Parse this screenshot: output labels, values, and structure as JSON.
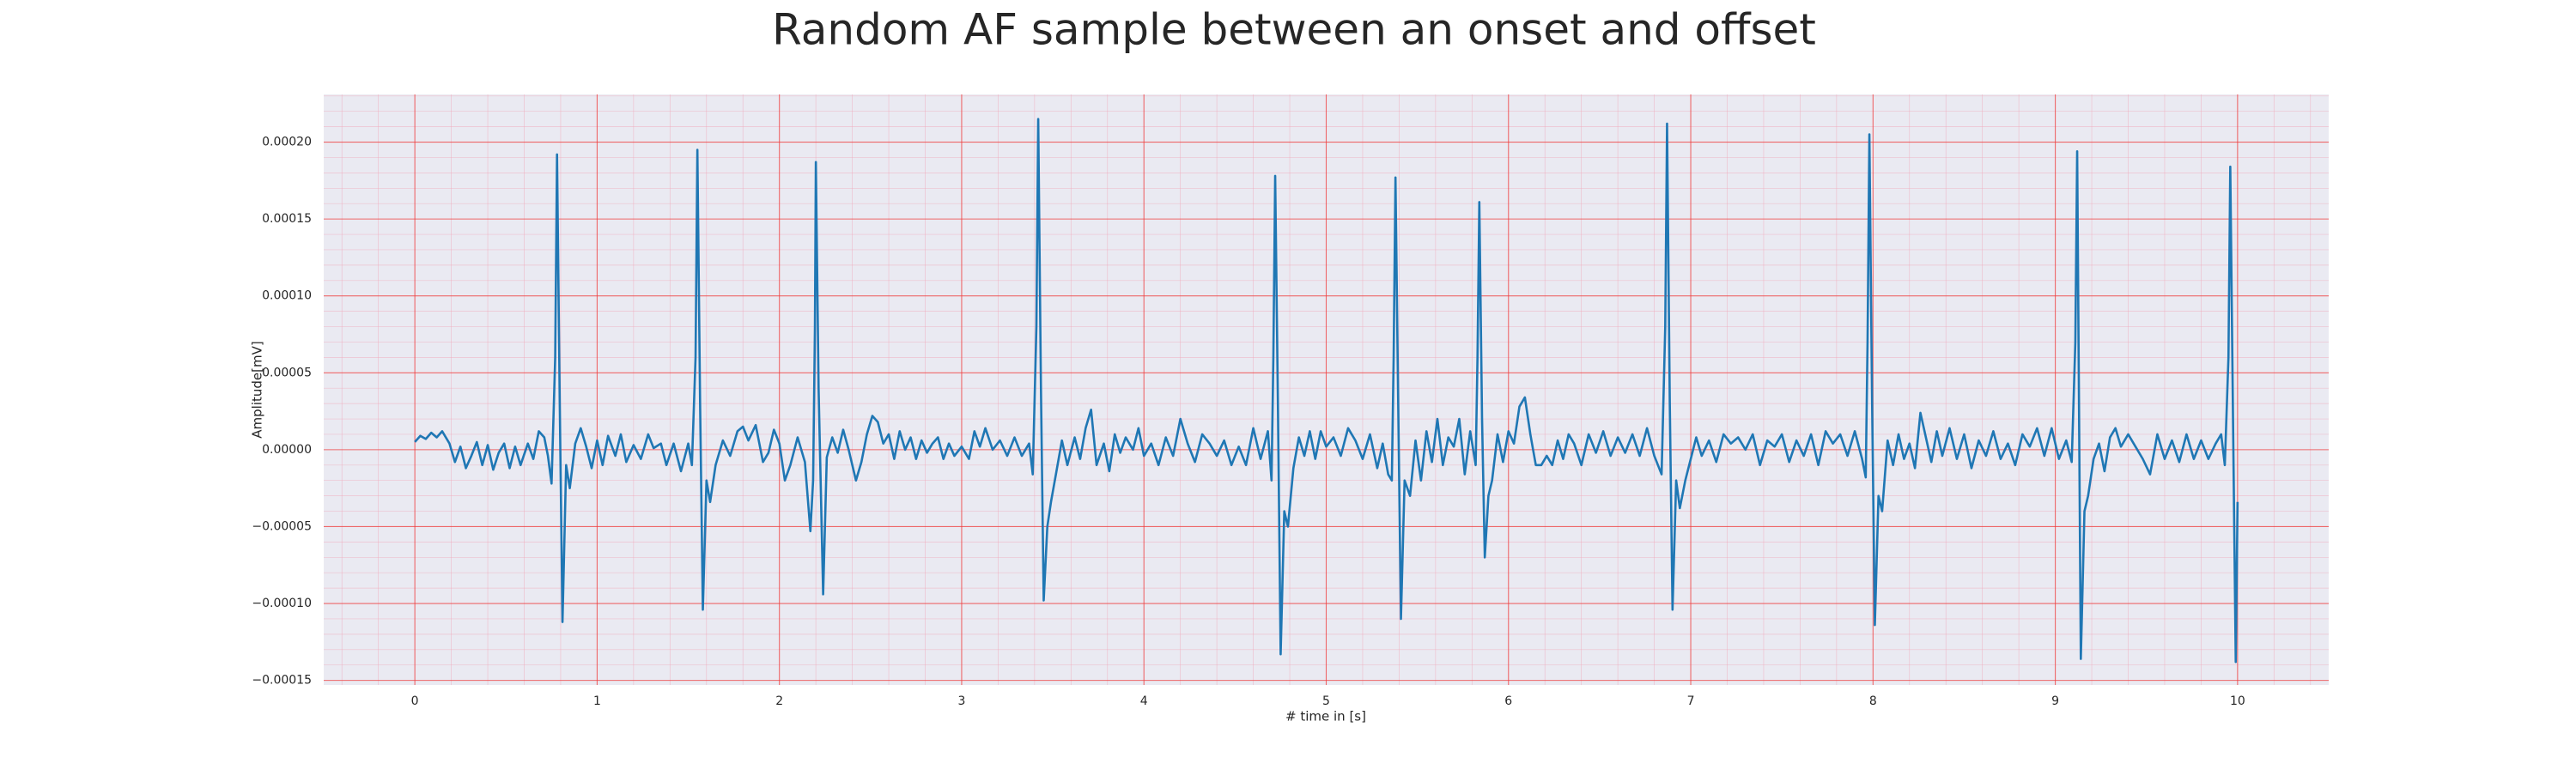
{
  "chart_data": {
    "type": "line",
    "title": "Random AF sample between an onset and offset",
    "x_label": "# time in [s]",
    "y_label": "Amplitude[mV]",
    "color": "#1f77b4",
    "background": "#eaeaf2",
    "grid": true,
    "minor_grid": true,
    "xlim": [
      -0.5,
      10.5
    ],
    "ylim": [
      -0.000153,
      0.000231
    ],
    "xticks": [
      0,
      1,
      2,
      3,
      4,
      5,
      6,
      7,
      8,
      9,
      10
    ],
    "yticks": [
      {
        "value": -0.00015,
        "label": "−0.00015"
      },
      {
        "value": -0.0001,
        "label": "−0.00010"
      },
      {
        "value": -5e-05,
        "label": "−0.00005"
      },
      {
        "value": 0,
        "label": "0.00000"
      },
      {
        "value": 5e-05,
        "label": "0.00005"
      },
      {
        "value": 0.0001,
        "label": "0.00010"
      },
      {
        "value": 0.00015,
        "label": "0.00015"
      },
      {
        "value": 0.0002,
        "label": "0.00020"
      }
    ],
    "x": [
      0,
      0.03,
      0.06,
      0.09,
      0.12,
      0.15,
      0.19,
      0.22,
      0.25,
      0.28,
      0.31,
      0.34,
      0.37,
      0.4,
      0.43,
      0.46,
      0.49,
      0.52,
      0.55,
      0.58,
      0.62,
      0.65,
      0.68,
      0.71,
      0.73,
      0.75,
      0.77,
      0.78,
      0.795,
      0.81,
      0.83,
      0.85,
      0.88,
      0.91,
      0.94,
      0.97,
      1.0,
      1.03,
      1.06,
      1.1,
      1.13,
      1.16,
      1.2,
      1.24,
      1.28,
      1.31,
      1.35,
      1.38,
      1.42,
      1.46,
      1.5,
      1.52,
      1.54,
      1.55,
      1.565,
      1.58,
      1.6,
      1.62,
      1.65,
      1.69,
      1.73,
      1.77,
      1.8,
      1.83,
      1.87,
      1.91,
      1.94,
      1.97,
      2.0,
      2.03,
      2.06,
      2.1,
      2.14,
      2.17,
      2.185,
      2.195,
      2.2,
      2.215,
      2.24,
      2.26,
      2.29,
      2.32,
      2.35,
      2.38,
      2.42,
      2.45,
      2.48,
      2.51,
      2.54,
      2.57,
      2.6,
      2.63,
      2.66,
      2.69,
      2.72,
      2.75,
      2.78,
      2.81,
      2.84,
      2.87,
      2.9,
      2.93,
      2.96,
      3.0,
      3.04,
      3.07,
      3.1,
      3.13,
      3.17,
      3.21,
      3.25,
      3.29,
      3.33,
      3.37,
      3.39,
      3.41,
      3.42,
      3.435,
      3.45,
      3.47,
      3.49,
      3.52,
      3.55,
      3.58,
      3.62,
      3.65,
      3.68,
      3.71,
      3.74,
      3.78,
      3.81,
      3.84,
      3.87,
      3.9,
      3.94,
      3.97,
      4.0,
      4.04,
      4.08,
      4.12,
      4.16,
      4.2,
      4.24,
      4.28,
      4.32,
      4.36,
      4.4,
      4.44,
      4.48,
      4.52,
      4.56,
      4.6,
      4.64,
      4.68,
      4.7,
      4.71,
      4.72,
      4.735,
      4.75,
      4.77,
      4.79,
      4.82,
      4.85,
      4.88,
      4.91,
      4.94,
      4.97,
      5.0,
      5.04,
      5.08,
      5.12,
      5.16,
      5.2,
      5.24,
      5.28,
      5.31,
      5.34,
      5.36,
      5.37,
      5.38,
      5.395,
      5.41,
      5.43,
      5.46,
      5.49,
      5.52,
      5.55,
      5.58,
      5.61,
      5.64,
      5.67,
      5.7,
      5.73,
      5.76,
      5.79,
      5.82,
      5.83,
      5.84,
      5.855,
      5.87,
      5.89,
      5.91,
      5.94,
      5.97,
      6.0,
      6.03,
      6.06,
      6.09,
      6.12,
      6.15,
      6.18,
      6.21,
      6.24,
      6.27,
      6.3,
      6.33,
      6.36,
      6.4,
      6.44,
      6.48,
      6.52,
      6.56,
      6.6,
      6.64,
      6.68,
      6.72,
      6.76,
      6.8,
      6.84,
      6.86,
      6.87,
      6.885,
      6.9,
      6.92,
      6.94,
      6.97,
      7.0,
      7.03,
      7.06,
      7.1,
      7.14,
      7.18,
      7.22,
      7.26,
      7.3,
      7.34,
      7.38,
      7.42,
      7.46,
      7.5,
      7.54,
      7.58,
      7.62,
      7.66,
      7.7,
      7.74,
      7.78,
      7.82,
      7.86,
      7.9,
      7.94,
      7.96,
      7.97,
      7.98,
      7.995,
      8.01,
      8.03,
      8.05,
      8.08,
      8.11,
      8.14,
      8.17,
      8.2,
      8.23,
      8.26,
      8.29,
      8.32,
      8.35,
      8.38,
      8.42,
      8.46,
      8.5,
      8.54,
      8.58,
      8.62,
      8.66,
      8.7,
      8.74,
      8.78,
      8.82,
      8.86,
      8.9,
      8.94,
      8.98,
      9.02,
      9.06,
      9.09,
      9.11,
      9.12,
      9.13,
      9.14,
      9.16,
      9.18,
      9.21,
      9.24,
      9.27,
      9.3,
      9.33,
      9.36,
      9.4,
      9.44,
      9.48,
      9.52,
      9.56,
      9.6,
      9.64,
      9.68,
      9.72,
      9.76,
      9.8,
      9.84,
      9.88,
      9.91,
      9.93,
      9.95,
      9.96,
      9.975,
      9.99,
      10.0
    ],
    "values": [
      5e-06,
      9e-06,
      7e-06,
      1.1e-05,
      8e-06,
      1.2e-05,
      4e-06,
      -8e-06,
      2e-06,
      -1.2e-05,
      -4e-06,
      5e-06,
      -1e-05,
      3e-06,
      -1.3e-05,
      -2e-06,
      4e-06,
      -1.2e-05,
      2e-06,
      -1e-05,
      4e-06,
      -6e-06,
      1.2e-05,
      8e-06,
      -4e-06,
      -2.2e-05,
      6e-05,
      0.000192,
      3e-05,
      -0.000112,
      -1e-05,
      -2.5e-05,
      4e-06,
      1.4e-05,
      2e-06,
      -1.2e-05,
      6e-06,
      -1e-05,
      9e-06,
      -4e-06,
      1e-05,
      -8e-06,
      3e-06,
      -6e-06,
      1e-05,
      1e-06,
      4e-06,
      -1e-05,
      4e-06,
      -1.4e-05,
      4e-06,
      -1e-05,
      6e-05,
      0.000195,
      3e-05,
      -0.000104,
      -2e-05,
      -3.4e-05,
      -1e-05,
      6e-06,
      -4e-06,
      1.2e-05,
      1.5e-05,
      6e-06,
      1.6e-05,
      -8e-06,
      -2e-06,
      1.3e-05,
      4e-06,
      -2e-05,
      -1e-05,
      8e-06,
      -8e-06,
      -5.3e-05,
      -2e-05,
      8e-05,
      0.000187,
      4e-05,
      -9.4e-05,
      -5e-06,
      8e-06,
      -2e-06,
      1.3e-05,
      0,
      -2e-05,
      -8e-06,
      1e-05,
      2.2e-05,
      1.8e-05,
      4e-06,
      1e-05,
      -6e-06,
      1.2e-05,
      0,
      8e-06,
      -6e-06,
      6e-06,
      -2e-06,
      4e-06,
      8e-06,
      -6e-06,
      4e-06,
      -4e-06,
      2e-06,
      -6e-06,
      1.2e-05,
      2e-06,
      1.4e-05,
      0,
      6e-06,
      -4e-06,
      8e-06,
      -4e-06,
      4e-06,
      -1.6e-05,
      8e-05,
      0.000215,
      4e-05,
      -9.8e-05,
      -5e-05,
      -3.4e-05,
      -1.4e-05,
      6e-06,
      -1e-05,
      8e-06,
      -6e-06,
      1.4e-05,
      2.6e-05,
      -1e-05,
      4e-06,
      -1.4e-05,
      1e-05,
      -2e-06,
      8e-06,
      0,
      1.4e-05,
      -4e-06,
      4e-06,
      -1e-05,
      8e-06,
      -4e-06,
      2e-05,
      4e-06,
      -8e-06,
      1e-05,
      4e-06,
      -4e-06,
      6e-06,
      -1e-05,
      2e-06,
      -1e-05,
      1.4e-05,
      -6e-06,
      1.2e-05,
      -2e-05,
      6e-05,
      0.000178,
      3e-05,
      -0.000133,
      -4e-05,
      -5e-05,
      -1.2e-05,
      8e-06,
      -4e-06,
      1.2e-05,
      -6e-06,
      1.2e-05,
      2e-06,
      8e-06,
      -4e-06,
      1.4e-05,
      6e-06,
      -6e-06,
      1e-05,
      -1.2e-05,
      4e-06,
      -1.6e-05,
      -2e-05,
      6e-05,
      0.000177,
      3e-05,
      -0.00011,
      -2e-05,
      -3e-05,
      6e-06,
      -2e-05,
      1.2e-05,
      -8e-06,
      2e-05,
      -1e-05,
      8e-06,
      2e-06,
      2e-05,
      -1.6e-05,
      1.2e-05,
      -1e-05,
      6e-05,
      0.000161,
      2e-05,
      -7e-05,
      -3e-05,
      -2e-05,
      1e-05,
      -8e-06,
      1.2e-05,
      4e-06,
      2.8e-05,
      3.4e-05,
      1e-05,
      -1e-05,
      -1e-05,
      -4e-06,
      -1e-05,
      6e-06,
      -6e-06,
      1e-05,
      4e-06,
      -1e-05,
      1e-05,
      -2e-06,
      1.2e-05,
      -4e-06,
      8e-06,
      -2e-06,
      1e-05,
      -4e-06,
      1.4e-05,
      -4e-06,
      -1.6e-05,
      8e-05,
      0.000212,
      3e-05,
      -0.000104,
      -2e-05,
      -3.8e-05,
      -2e-05,
      -6e-06,
      8e-06,
      -4e-06,
      6e-06,
      -8e-06,
      1e-05,
      4e-06,
      8e-06,
      0,
      1e-05,
      -1e-05,
      6e-06,
      2e-06,
      1e-05,
      -8e-06,
      6e-06,
      -4e-06,
      1e-05,
      -1e-05,
      1.2e-05,
      4e-06,
      1e-05,
      -4e-06,
      1.2e-05,
      -6e-06,
      -1.8e-05,
      7e-05,
      0.000205,
      3e-05,
      -0.000114,
      -3e-05,
      -4e-05,
      6e-06,
      -1e-05,
      1e-05,
      -6e-06,
      4e-06,
      -1.2e-05,
      2.4e-05,
      8e-06,
      -8e-06,
      1.2e-05,
      -4e-06,
      1.4e-05,
      -6e-06,
      1e-05,
      -1.2e-05,
      6e-06,
      -4e-06,
      1.2e-05,
      -6e-06,
      4e-06,
      -1e-05,
      1e-05,
      2e-06,
      1.4e-05,
      -4e-06,
      1.4e-05,
      -6e-06,
      6e-06,
      -8e-06,
      7e-05,
      0.000194,
      3e-05,
      -0.000136,
      -4e-05,
      -3e-05,
      -6e-06,
      4e-06,
      -1.4e-05,
      8e-06,
      1.4e-05,
      2e-06,
      1e-05,
      2e-06,
      -6e-06,
      -1.6e-05,
      1e-05,
      -6e-06,
      6e-06,
      -8e-06,
      1e-05,
      -6e-06,
      6e-06,
      -6e-06,
      4e-06,
      1e-05,
      -1e-05,
      6e-05,
      0.000184,
      2e-05,
      -0.000138,
      -3.4e-05
    ]
  }
}
